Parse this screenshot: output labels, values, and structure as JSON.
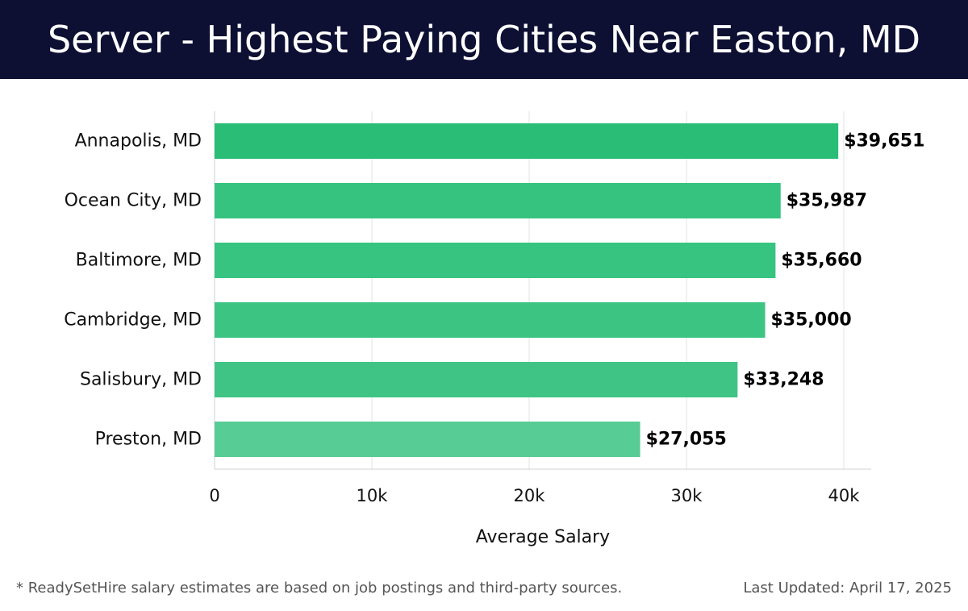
{
  "header": {
    "title": "Server - Highest Paying Cities Near Easton, MD"
  },
  "chart_data": {
    "type": "bar",
    "orientation": "horizontal",
    "categories": [
      "Annapolis, MD",
      "Ocean City, MD",
      "Baltimore, MD",
      "Cambridge, MD",
      "Salisbury, MD",
      "Preston, MD"
    ],
    "values": [
      39651,
      35987,
      35660,
      35000,
      33248,
      27055
    ],
    "value_labels": [
      "$39,651",
      "$35,987",
      "$35,660",
      "$35,000",
      "$33,248",
      "$27,055"
    ],
    "bar_colors": [
      "#2abd76",
      "#36c37f",
      "#37c380",
      "#3bc482",
      "#3fc485",
      "#58cc95"
    ],
    "xlabel": "Average Salary",
    "ylabel": "",
    "xlim": [
      0,
      40000
    ],
    "xticks": [
      0,
      10000,
      20000,
      30000,
      40000
    ],
    "xtick_labels": [
      "0",
      "10k",
      "20k",
      "30k",
      "40k"
    ],
    "grid": true
  },
  "footer": {
    "note": "* ReadySetHire salary estimates are based on job postings and third-party sources.",
    "updated": "Last Updated: April 17, 2025"
  }
}
